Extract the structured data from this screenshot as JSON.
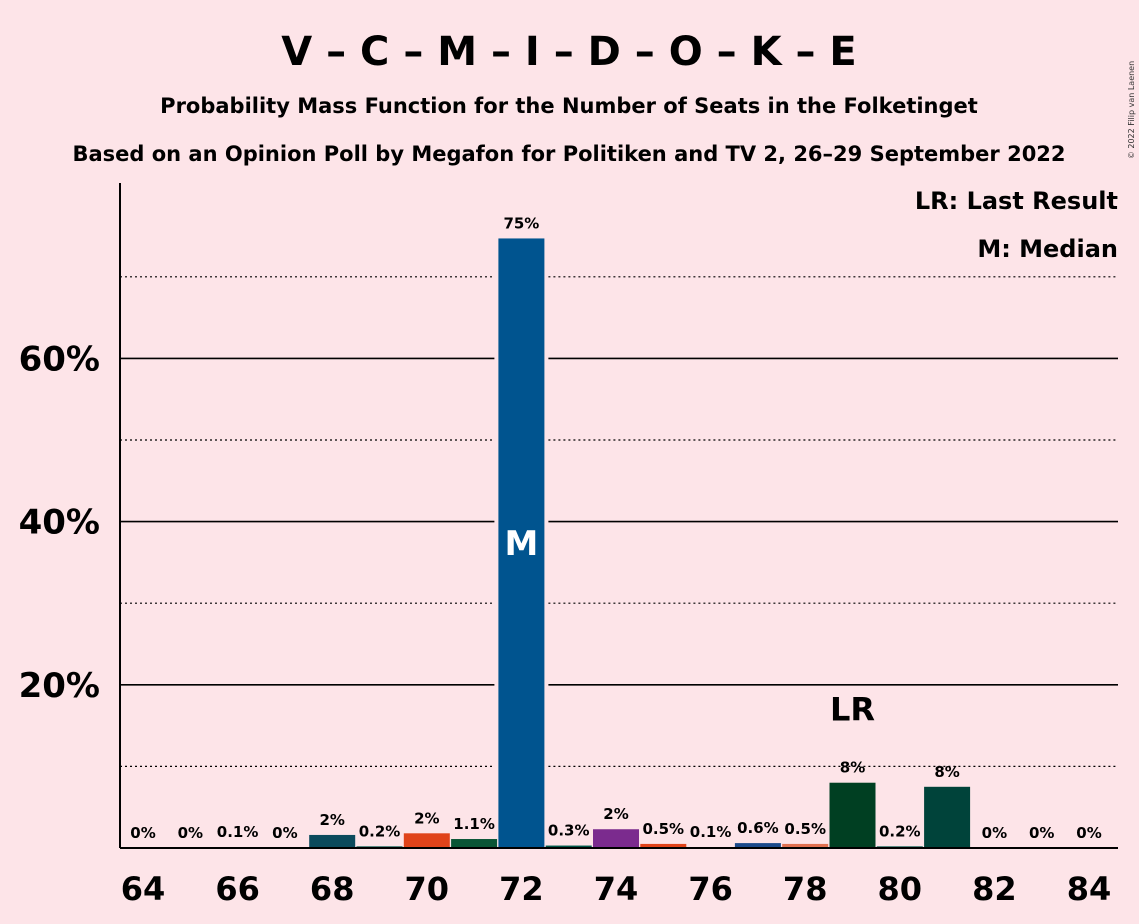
{
  "copyright": "© 2022 Filip van Laenen",
  "chart_data": {
    "type": "bar",
    "title": "V – C – M – I – D – O – K – E",
    "subtitle": "Probability Mass Function for the Number of Seats in the Folketinget",
    "source": "Based on an Opinion Poll by Megafon for Politiken and TV 2, 26–29 September 2022",
    "legend": {
      "last_result": "LR: Last Result",
      "median": "M: Median"
    },
    "x_ticks": [
      "64",
      "66",
      "68",
      "70",
      "72",
      "74",
      "76",
      "78",
      "80",
      "82",
      "84"
    ],
    "y_ticks": [
      "20%",
      "40%",
      "60%"
    ],
    "ylim": [
      0,
      80
    ],
    "x": [
      64,
      65,
      66,
      67,
      68,
      69,
      70,
      71,
      72,
      73,
      74,
      75,
      76,
      77,
      78,
      79,
      80,
      81,
      82,
      83,
      84
    ],
    "values": [
      0,
      0,
      0.1,
      0,
      1.6,
      0.2,
      1.8,
      1.1,
      74.7,
      0.3,
      2.3,
      0.5,
      0.1,
      0.6,
      0.5,
      8.0,
      0.2,
      7.5,
      0,
      0,
      0
    ],
    "labels": [
      "0%",
      "0%",
      "0.1%",
      "0%",
      "2%",
      "0.2%",
      "2%",
      "1.1%",
      "75%",
      "0.3%",
      "2%",
      "0.5%",
      "0.1%",
      "0.6%",
      "0.5%",
      "8%",
      "0.2%",
      "8%",
      "0%",
      "0%",
      "0%"
    ],
    "colors": [
      "#00584A",
      "#005A2E",
      "#00584A",
      "#00584A",
      "#0B4A5C",
      "#00584A",
      "#E0431A",
      "#0A5536",
      "#00548F",
      "#00584A",
      "#7B2B8E",
      "#E0431A",
      "#00584A",
      "#1B4A8A",
      "#E07050",
      "#003F22",
      "#00584A",
      "#00433A",
      "#00584A",
      "#00584A",
      "#00584A"
    ],
    "median": {
      "x": 72,
      "label": "M"
    },
    "last_result": {
      "x": 79,
      "label": "LR"
    },
    "grid": true
  }
}
